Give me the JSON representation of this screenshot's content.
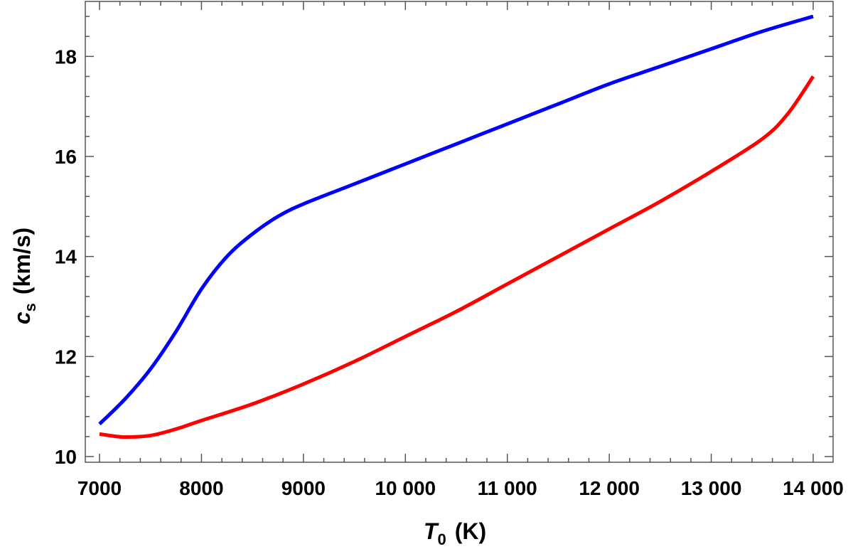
{
  "chart_data": {
    "type": "line",
    "title": "",
    "xlabel": {
      "symbol": "T",
      "subscript": "0",
      "unit": "(K)"
    },
    "ylabel": {
      "symbol": "c",
      "subscript": "s",
      "unit": "(km/s)"
    },
    "xlim": [
      7000,
      14000
    ],
    "ylim": [
      10,
      19
    ],
    "x_ticks": [
      7000,
      8000,
      9000,
      10000,
      11000,
      12000,
      13000,
      14000
    ],
    "x_tick_labels": [
      "7000",
      "8000",
      "9000",
      "10 000",
      "11 000",
      "12 000",
      "13 000",
      "14 000"
    ],
    "y_ticks": [
      10,
      12,
      14,
      16,
      18
    ],
    "y_tick_labels": [
      "10",
      "12",
      "14",
      "16",
      "18"
    ],
    "grid": false,
    "legend": "none",
    "series": [
      {
        "color": "#0000ff",
        "x": [
          7000,
          7250,
          7500,
          7750,
          8000,
          8250,
          8500,
          8750,
          9000,
          9500,
          10000,
          10500,
          11000,
          11500,
          12000,
          12500,
          13000,
          13500,
          14000
        ],
        "y": [
          10.65,
          11.15,
          11.75,
          12.5,
          13.35,
          14.0,
          14.45,
          14.8,
          15.05,
          15.45,
          15.85,
          16.25,
          16.65,
          17.05,
          17.45,
          17.8,
          18.15,
          18.5,
          18.8
        ]
      },
      {
        "color": "#ff0000",
        "x": [
          7000,
          7100,
          7250,
          7500,
          7750,
          8000,
          8500,
          9000,
          9500,
          10000,
          10500,
          11000,
          11500,
          12000,
          12500,
          13000,
          13500,
          13750,
          14000
        ],
        "y": [
          10.45,
          10.42,
          10.39,
          10.42,
          10.55,
          10.72,
          11.05,
          11.45,
          11.9,
          12.4,
          12.9,
          13.45,
          14.0,
          14.55,
          15.1,
          15.7,
          16.35,
          16.85,
          17.6
        ]
      }
    ]
  }
}
